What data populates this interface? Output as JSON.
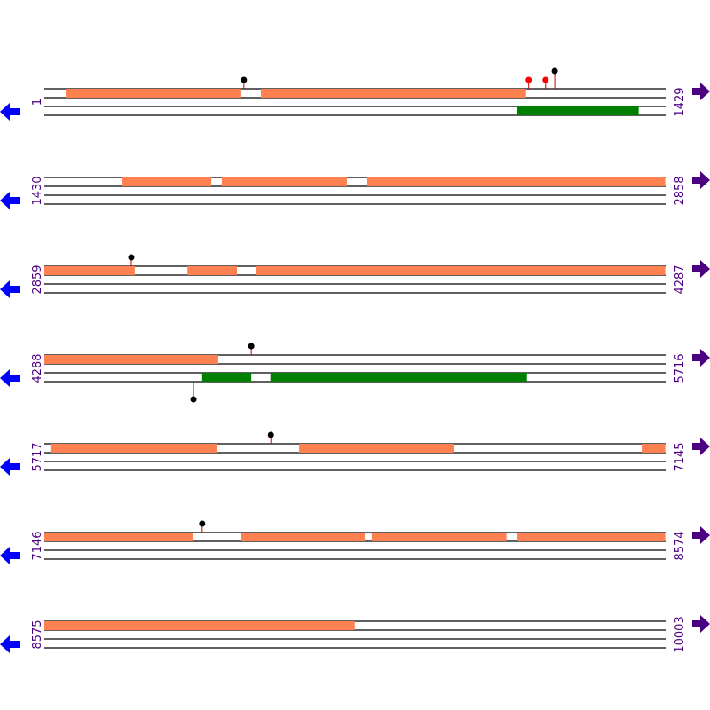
{
  "colors": {
    "top_feature": "#ff8050",
    "bottom_feature": "#008000",
    "label": "#4b0082",
    "left_arrow": "#0000ff",
    "right_arrow": "#4b0082",
    "stem": "#cc0000",
    "marker_black": "#000000",
    "marker_red": "#ff0000"
  },
  "icons": {
    "left": "arrow-left-icon",
    "right": "arrow-right-icon"
  },
  "bp_per_row": 1429,
  "rows": [
    {
      "start_label": "1",
      "end_label": "1429",
      "start": 1,
      "top": [
        [
          50,
          452
        ],
        [
          499,
          1109
        ]
      ],
      "bottom": [
        [
          1087,
          1368
        ]
      ],
      "markers": [
        {
          "pos": 460,
          "color": "black",
          "level": 1,
          "dir": "up"
        },
        {
          "pos": 1115,
          "color": "red",
          "level": 1,
          "dir": "up"
        },
        {
          "pos": 1154,
          "color": "red",
          "level": 1,
          "dir": "up"
        },
        {
          "pos": 1175,
          "color": "black",
          "level": 2,
          "dir": "up"
        }
      ]
    },
    {
      "start_label": "1430",
      "end_label": "2858",
      "start": 1430,
      "top": [
        [
          1608,
          1814
        ],
        [
          1838,
          2126
        ],
        [
          2173,
          2858
        ]
      ],
      "bottom": [],
      "markers": []
    },
    {
      "start_label": "2859",
      "end_label": "4287",
      "start": 2859,
      "top": [
        [
          2859,
          3067
        ],
        [
          3188,
          3302
        ],
        [
          3347,
          4287
        ]
      ],
      "bottom": [],
      "markers": [
        {
          "pos": 3059,
          "color": "black",
          "level": 1,
          "dir": "up"
        }
      ]
    },
    {
      "start_label": "4288",
      "end_label": "5716",
      "start": 4288,
      "top": [
        [
          4288,
          4688
        ]
      ],
      "bottom": [
        [
          4651,
          4764
        ],
        [
          4808,
          5398
        ]
      ],
      "markers": [
        {
          "pos": 4764,
          "color": "black",
          "level": 1,
          "dir": "up"
        },
        {
          "pos": 4631,
          "color": "black",
          "level": 1,
          "dir": "down"
        }
      ]
    },
    {
      "start_label": "5717",
      "end_label": "7145",
      "start": 5717,
      "top": [
        [
          5731,
          6115
        ],
        [
          6303,
          6658
        ],
        [
          7091,
          7145
        ]
      ],
      "bottom": [],
      "markers": [
        {
          "pos": 6238,
          "color": "black",
          "level": 1,
          "dir": "up"
        }
      ]
    },
    {
      "start_label": "7146",
      "end_label": "8574",
      "start": 7146,
      "top": [
        [
          7146,
          7487
        ],
        [
          7599,
          7883
        ],
        [
          7899,
          8209
        ],
        [
          8232,
          8574
        ]
      ],
      "bottom": [],
      "markers": [
        {
          "pos": 7509,
          "color": "black",
          "level": 1,
          "dir": "up"
        }
      ]
    },
    {
      "start_label": "8575",
      "end_label": "10003",
      "start": 8575,
      "top": [
        [
          8575,
          9289
        ]
      ],
      "bottom": [],
      "markers": []
    }
  ]
}
